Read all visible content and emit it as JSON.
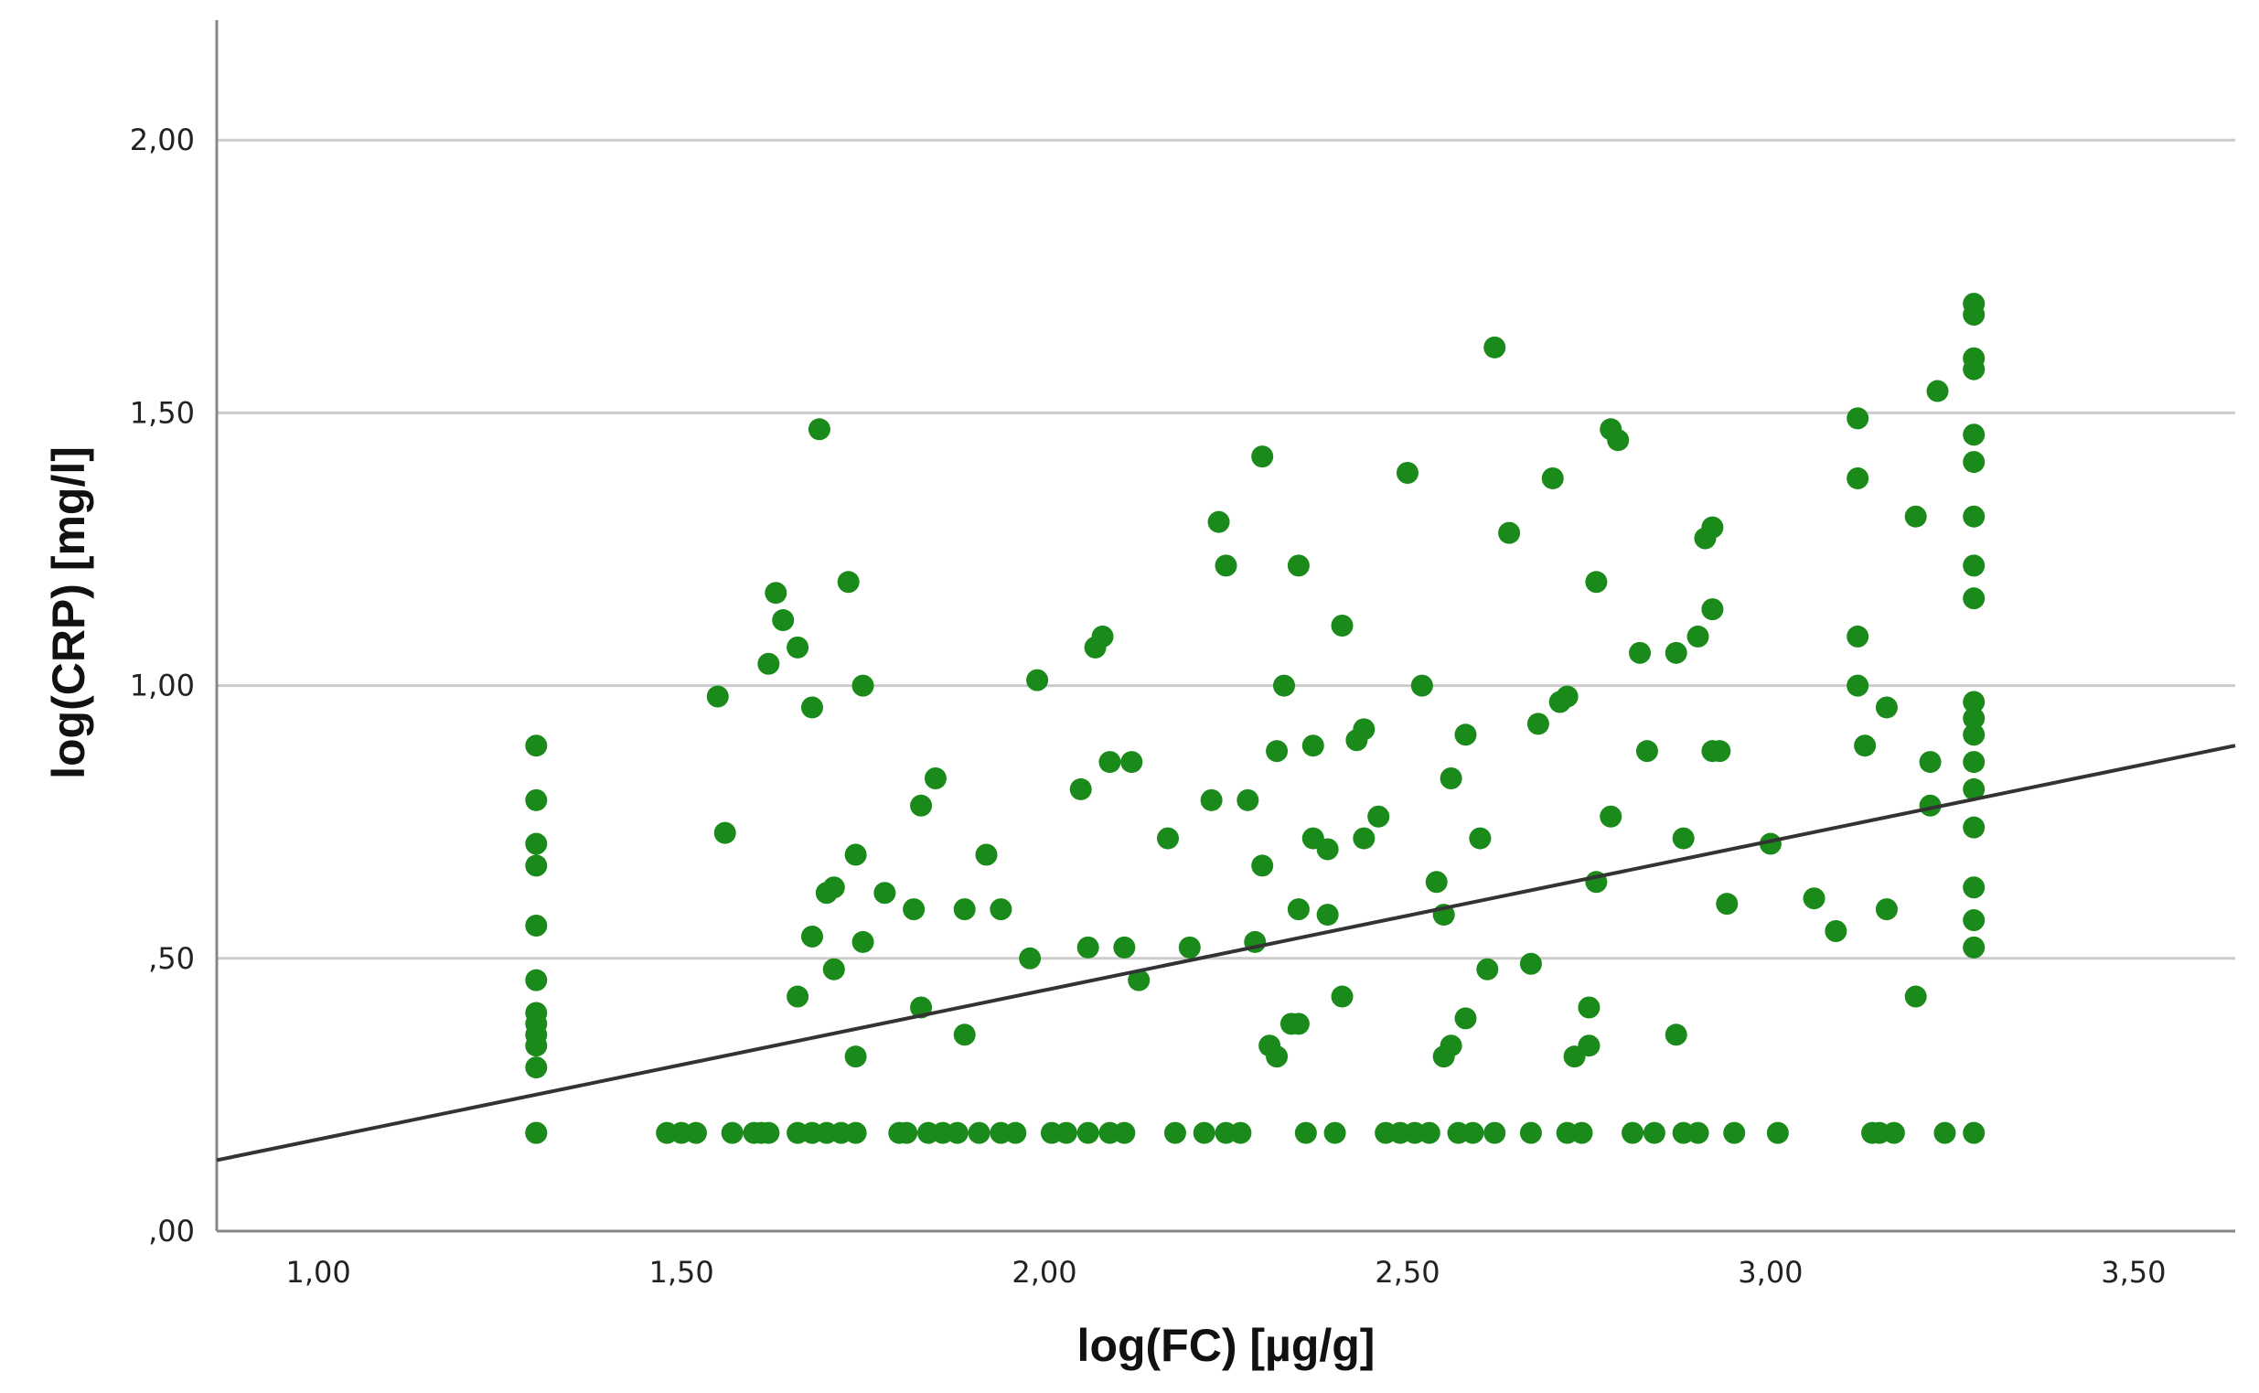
{
  "chart_data": {
    "type": "scatter",
    "title": "",
    "xlabel": "log(FC) [µg/g]",
    "ylabel": "log(CRP) [mg/l]",
    "xlim": [
      0.86,
      3.64
    ],
    "ylim": [
      0.0,
      2.22
    ],
    "x_ticks": [
      1.0,
      1.5,
      2.0,
      2.5,
      3.0,
      3.5
    ],
    "x_tick_labels": [
      "1,00",
      "1,50",
      "2,00",
      "2,50",
      "3,00",
      "3,50"
    ],
    "y_ticks": [
      0.0,
      0.5,
      1.0,
      1.5,
      2.0
    ],
    "y_tick_labels": [
      ",00",
      ",50",
      "1,00",
      "1,50",
      "2,00"
    ],
    "grid": "horizontal",
    "colors": {
      "points": "#1a8a1a",
      "fit_line": "#333333",
      "grid": "#cccccc",
      "axis": "#888888"
    },
    "fit_line": {
      "type": "linear",
      "points": [
        [
          0.86,
          0.13
        ],
        [
          3.64,
          0.89
        ]
      ]
    },
    "series": [
      {
        "points": [
          [
            1.3,
            0.18
          ],
          [
            1.3,
            0.18
          ],
          [
            1.3,
            0.3
          ],
          [
            1.3,
            0.34
          ],
          [
            1.3,
            0.36
          ],
          [
            1.3,
            0.38
          ],
          [
            1.3,
            0.4
          ],
          [
            1.3,
            0.46
          ],
          [
            1.3,
            0.56
          ],
          [
            1.3,
            0.67
          ],
          [
            1.3,
            0.71
          ],
          [
            1.3,
            0.79
          ],
          [
            1.3,
            0.89
          ],
          [
            1.48,
            0.18
          ],
          [
            1.5,
            0.18
          ],
          [
            1.52,
            0.18
          ],
          [
            1.55,
            0.98
          ],
          [
            1.56,
            0.73
          ],
          [
            1.57,
            0.18
          ],
          [
            1.6,
            0.18
          ],
          [
            1.61,
            0.18
          ],
          [
            1.62,
            0.18
          ],
          [
            1.62,
            1.04
          ],
          [
            1.63,
            1.17
          ],
          [
            1.64,
            1.12
          ],
          [
            1.66,
            1.07
          ],
          [
            1.66,
            0.43
          ],
          [
            1.66,
            0.18
          ],
          [
            1.68,
            0.96
          ],
          [
            1.68,
            0.54
          ],
          [
            1.68,
            0.18
          ],
          [
            1.69,
            1.47
          ],
          [
            1.7,
            0.18
          ],
          [
            1.7,
            0.62
          ],
          [
            1.71,
            0.48
          ],
          [
            1.71,
            0.63
          ],
          [
            1.72,
            0.18
          ],
          [
            1.73,
            1.19
          ],
          [
            1.74,
            0.69
          ],
          [
            1.74,
            0.32
          ],
          [
            1.74,
            0.18
          ],
          [
            1.75,
            0.53
          ],
          [
            1.75,
            1.0
          ],
          [
            1.78,
            0.62
          ],
          [
            1.8,
            0.18
          ],
          [
            1.81,
            0.18
          ],
          [
            1.82,
            0.59
          ],
          [
            1.83,
            0.78
          ],
          [
            1.83,
            0.41
          ],
          [
            1.84,
            0.18
          ],
          [
            1.85,
            0.83
          ],
          [
            1.86,
            0.18
          ],
          [
            1.88,
            0.18
          ],
          [
            1.89,
            0.59
          ],
          [
            1.89,
            0.36
          ],
          [
            1.91,
            0.18
          ],
          [
            1.92,
            0.69
          ],
          [
            1.94,
            0.59
          ],
          [
            1.94,
            0.18
          ],
          [
            1.96,
            0.18
          ],
          [
            1.98,
            0.5
          ],
          [
            1.99,
            1.01
          ],
          [
            2.01,
            0.18
          ],
          [
            2.03,
            0.18
          ],
          [
            2.05,
            0.81
          ],
          [
            2.06,
            0.52
          ],
          [
            2.06,
            0.18
          ],
          [
            2.07,
            1.07
          ],
          [
            2.08,
            1.09
          ],
          [
            2.09,
            0.86
          ],
          [
            2.09,
            0.18
          ],
          [
            2.11,
            0.52
          ],
          [
            2.11,
            0.18
          ],
          [
            2.12,
            0.86
          ],
          [
            2.13,
            0.46
          ],
          [
            2.17,
            0.72
          ],
          [
            2.18,
            0.18
          ],
          [
            2.2,
            0.52
          ],
          [
            2.22,
            0.18
          ],
          [
            2.23,
            0.79
          ],
          [
            2.24,
            1.3
          ],
          [
            2.25,
            1.22
          ],
          [
            2.25,
            0.18
          ],
          [
            2.27,
            0.18
          ],
          [
            2.28,
            0.79
          ],
          [
            2.29,
            0.53
          ],
          [
            2.3,
            0.67
          ],
          [
            2.3,
            1.42
          ],
          [
            2.31,
            0.34
          ],
          [
            2.32,
            0.32
          ],
          [
            2.32,
            0.88
          ],
          [
            2.33,
            1.0
          ],
          [
            2.34,
            0.38
          ],
          [
            2.35,
            1.22
          ],
          [
            2.35,
            0.59
          ],
          [
            2.35,
            0.38
          ],
          [
            2.36,
            0.18
          ],
          [
            2.37,
            0.89
          ],
          [
            2.37,
            0.72
          ],
          [
            2.39,
            0.58
          ],
          [
            2.39,
            0.7
          ],
          [
            2.4,
            0.18
          ],
          [
            2.41,
            0.43
          ],
          [
            2.41,
            1.11
          ],
          [
            2.43,
            0.9
          ],
          [
            2.44,
            0.72
          ],
          [
            2.44,
            0.92
          ],
          [
            2.46,
            0.76
          ],
          [
            2.47,
            0.18
          ],
          [
            2.49,
            0.18
          ],
          [
            2.5,
            1.39
          ],
          [
            2.51,
            0.18
          ],
          [
            2.52,
            1.0
          ],
          [
            2.53,
            0.18
          ],
          [
            2.54,
            0.64
          ],
          [
            2.55,
            0.58
          ],
          [
            2.55,
            0.32
          ],
          [
            2.56,
            0.34
          ],
          [
            2.56,
            0.83
          ],
          [
            2.57,
            0.18
          ],
          [
            2.58,
            0.39
          ],
          [
            2.58,
            0.91
          ],
          [
            2.59,
            0.18
          ],
          [
            2.6,
            0.72
          ],
          [
            2.61,
            0.48
          ],
          [
            2.62,
            0.18
          ],
          [
            2.62,
            1.62
          ],
          [
            2.64,
            1.28
          ],
          [
            2.67,
            0.18
          ],
          [
            2.67,
            0.49
          ],
          [
            2.68,
            0.93
          ],
          [
            2.7,
            1.38
          ],
          [
            2.71,
            0.97
          ],
          [
            2.72,
            0.18
          ],
          [
            2.72,
            0.98
          ],
          [
            2.73,
            0.32
          ],
          [
            2.74,
            0.18
          ],
          [
            2.75,
            0.34
          ],
          [
            2.75,
            0.41
          ],
          [
            2.76,
            1.19
          ],
          [
            2.76,
            0.64
          ],
          [
            2.78,
            0.76
          ],
          [
            2.78,
            1.47
          ],
          [
            2.79,
            1.45
          ],
          [
            2.81,
            0.18
          ],
          [
            2.82,
            1.06
          ],
          [
            2.83,
            0.88
          ],
          [
            2.84,
            0.18
          ],
          [
            2.87,
            1.06
          ],
          [
            2.87,
            0.36
          ],
          [
            2.88,
            0.72
          ],
          [
            2.88,
            0.18
          ],
          [
            2.9,
            0.18
          ],
          [
            2.9,
            1.09
          ],
          [
            2.91,
            1.27
          ],
          [
            2.92,
            1.29
          ],
          [
            2.92,
            1.14
          ],
          [
            2.92,
            0.88
          ],
          [
            2.93,
            0.88
          ],
          [
            2.94,
            0.6
          ],
          [
            2.95,
            0.18
          ],
          [
            3.0,
            0.71
          ],
          [
            3.01,
            0.18
          ],
          [
            3.06,
            0.61
          ],
          [
            3.09,
            0.55
          ],
          [
            3.12,
            1.49
          ],
          [
            3.12,
            1.38
          ],
          [
            3.12,
            1.09
          ],
          [
            3.12,
            1.0
          ],
          [
            3.13,
            0.89
          ],
          [
            3.14,
            0.18
          ],
          [
            3.15,
            0.18
          ],
          [
            3.16,
            0.96
          ],
          [
            3.16,
            0.59
          ],
          [
            3.17,
            0.18
          ],
          [
            3.2,
            1.31
          ],
          [
            3.2,
            0.43
          ],
          [
            3.22,
            0.86
          ],
          [
            3.22,
            0.78
          ],
          [
            3.23,
            1.54
          ],
          [
            3.24,
            0.18
          ],
          [
            3.28,
            1.7
          ],
          [
            3.28,
            1.68
          ],
          [
            3.28,
            1.6
          ],
          [
            3.28,
            1.58
          ],
          [
            3.28,
            1.46
          ],
          [
            3.28,
            1.41
          ],
          [
            3.28,
            1.31
          ],
          [
            3.28,
            1.22
          ],
          [
            3.28,
            1.16
          ],
          [
            3.28,
            0.97
          ],
          [
            3.28,
            0.94
          ],
          [
            3.28,
            0.91
          ],
          [
            3.28,
            0.86
          ],
          [
            3.28,
            0.81
          ],
          [
            3.28,
            0.74
          ],
          [
            3.28,
            0.63
          ],
          [
            3.28,
            0.57
          ],
          [
            3.28,
            0.52
          ],
          [
            3.28,
            0.18
          ]
        ]
      }
    ]
  }
}
